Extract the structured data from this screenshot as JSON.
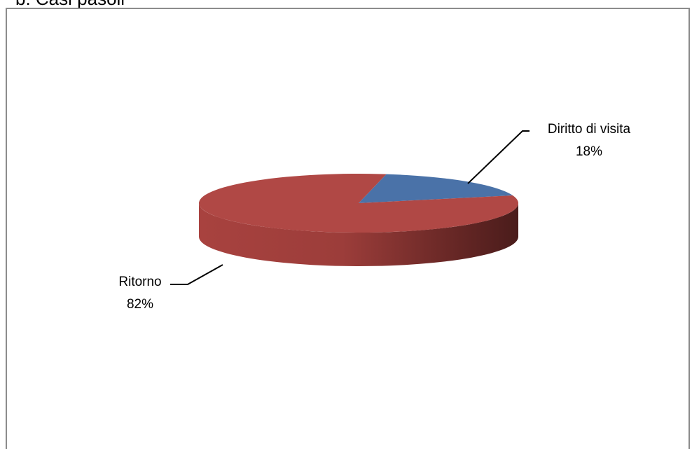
{
  "heading": "b. Casi pasoli",
  "chart_data": {
    "type": "pie",
    "title": "",
    "slices": [
      {
        "name": "Diritto di visita",
        "value": 18,
        "percent_label": "18%",
        "color": "#4a72a8"
      },
      {
        "name": "Ritorno",
        "value": 82,
        "percent_label": "82%",
        "color": "#b04845"
      }
    ],
    "style": "3d-tilted",
    "legend": "none",
    "data_labels": "outside-with-leader-lines"
  }
}
